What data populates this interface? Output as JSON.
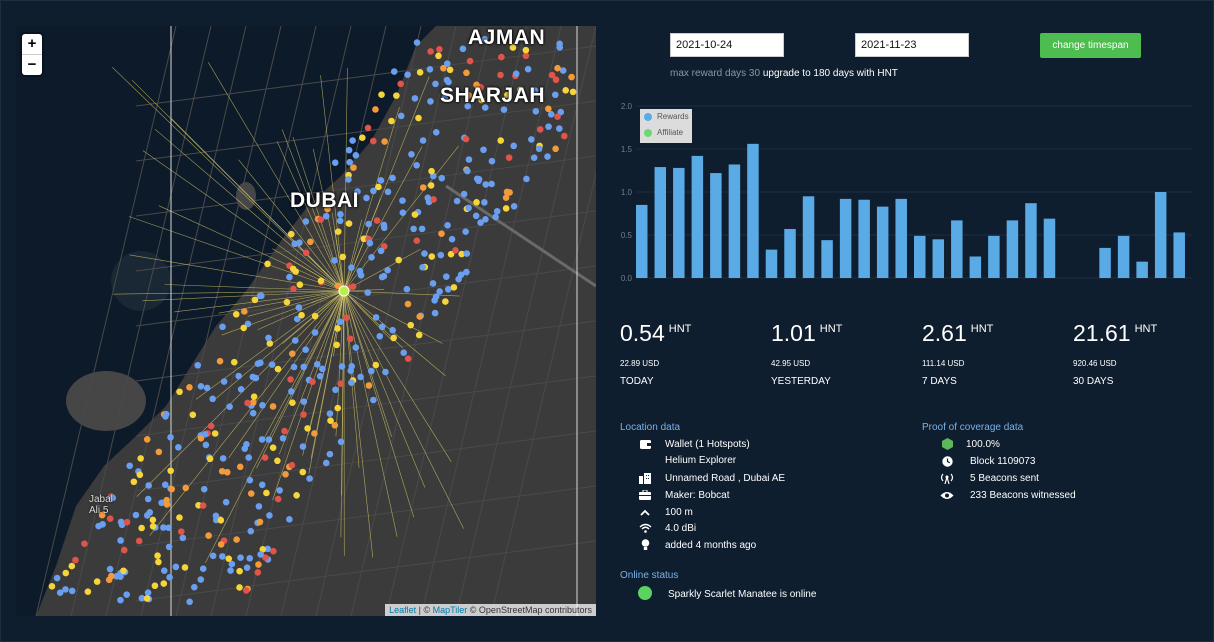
{
  "controls": {
    "start_date": "2021-10-24",
    "end_date": "2021-11-23",
    "change_timespan_label": "change timespan",
    "note_prefix": "max reward days 30",
    "note_upgrade": "upgrade to 180 days with HNT"
  },
  "map": {
    "zoom_in": "+",
    "zoom_out": "−",
    "cities": {
      "ajman": "AJMAN",
      "sharjah": "SHARJAH",
      "dubai": "DUBAI",
      "small": "Jabal\nAli 5"
    },
    "attribution": {
      "leaflet": "Leaflet",
      "sep": " | © ",
      "maptiler": "MapTiler",
      "osm": " © OpenStreetMap contributors"
    },
    "colors": {
      "blue": "#6a9ff0",
      "yellow": "#f5d53a",
      "orange": "#f39a3a",
      "red": "#e0544a",
      "line": "#e3d36a",
      "hotspot": "#b8f04a"
    }
  },
  "chart_data": {
    "type": "bar",
    "ylim": [
      0,
      2.0
    ],
    "yticks": [
      "0.0",
      "0.5",
      "1.0",
      "1.5",
      "2.0"
    ],
    "series": [
      {
        "name": "Rewards",
        "color": "#5aaae6",
        "values": [
          0.85,
          1.29,
          1.28,
          1.42,
          1.22,
          1.32,
          1.56,
          0.33,
          0.57,
          0.95,
          0.44,
          0.92,
          0.91,
          0.83,
          0.92,
          0.49,
          0.45,
          0.67,
          0.25,
          0.49,
          0.67,
          0.87,
          0.69,
          0,
          0,
          0.35,
          0.49,
          0.19,
          1.0,
          0.53
        ]
      },
      {
        "name": "Affiliate",
        "color": "#70d870",
        "values": []
      }
    ],
    "legend": [
      "Rewards",
      "Affiliate"
    ],
    "legend_position": "top-left"
  },
  "stats": [
    {
      "value": "0.54",
      "unit": "HNT",
      "usd": "22.89 USD",
      "period": "TODAY"
    },
    {
      "value": "1.01",
      "unit": "HNT",
      "usd": "42.95 USD",
      "period": "YESTERDAY"
    },
    {
      "value": "2.61",
      "unit": "HNT",
      "usd": "111.14 USD",
      "period": "7 DAYS"
    },
    {
      "value": "21.61",
      "unit": "HNT",
      "usd": "920.46 USD",
      "period": "30 DAYS"
    }
  ],
  "location": {
    "title": "Location data",
    "wallet": "Wallet (1 Hotspots)",
    "explorer": "Helium Explorer",
    "address": "Unnamed Road , Dubai AE",
    "maker": "Maker: Bobcat",
    "elevation": "100 m",
    "gain": "4.0 dBi",
    "added": "added 4 months ago"
  },
  "coverage": {
    "title": "Proof of coverage data",
    "score": "100.0%",
    "block": "Block 1109073",
    "beacons_sent": "5 Beacons sent",
    "beacons_witnessed": "233 Beacons witnessed"
  },
  "online": {
    "title": "Online status",
    "text": "Sparkly Scarlet Manatee is online"
  }
}
